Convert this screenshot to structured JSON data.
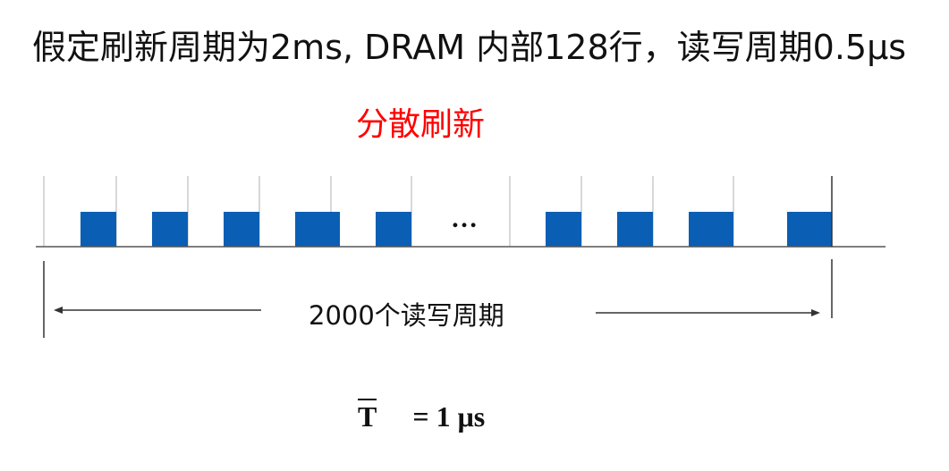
{
  "title": "假定刷新周期为2ms, DRAM 内部128行，读写周期0.5μs",
  "subtitle": "分散刷新",
  "span_label": "2000个读写周期",
  "ellipsis": "…",
  "formula": {
    "symbol": "T",
    "equation": "= 1 μs"
  },
  "colors": {
    "refresh_block": "#0a5fb4",
    "subtitle": "#ff0000"
  }
}
